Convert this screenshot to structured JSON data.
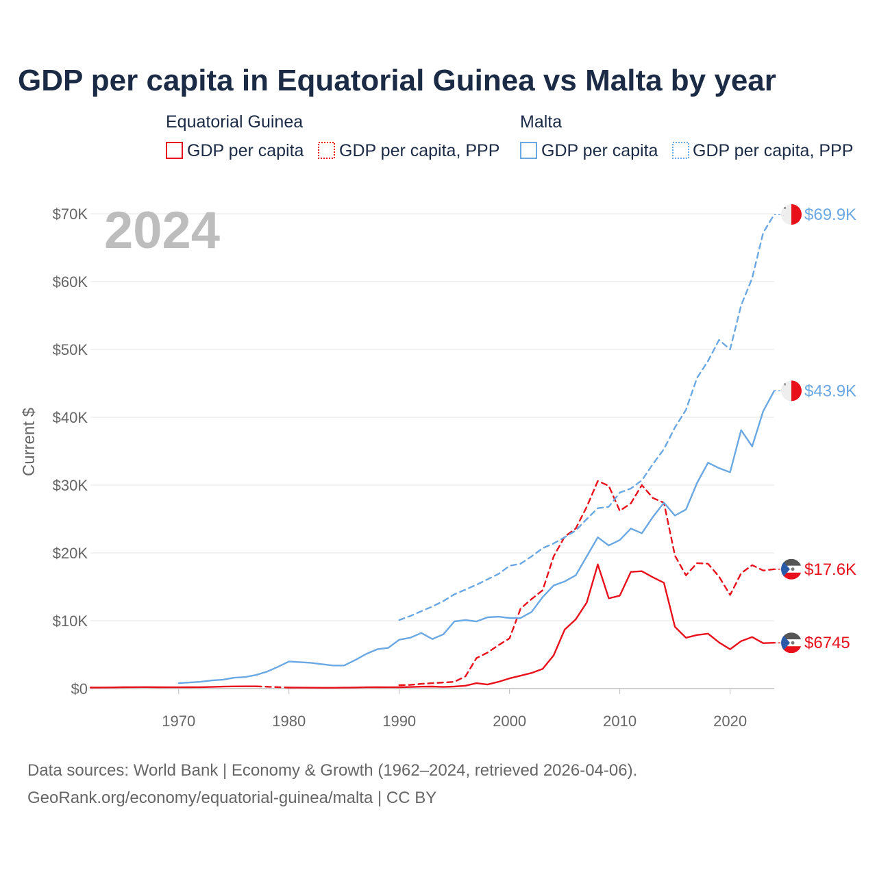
{
  "title": "GDP per capita in Equatorial Guinea vs Malta by year",
  "legend": {
    "groups": [
      {
        "name": "Equatorial Guinea",
        "color": "#e8101b",
        "items": [
          "GDP per capita",
          "GDP per capita, PPP"
        ]
      },
      {
        "name": "Malta",
        "color": "#6aa8e4",
        "items": [
          "GDP per capita",
          "GDP per capita, PPP"
        ]
      }
    ]
  },
  "year_label": "2024",
  "source_lines": [
    "Data sources: World Bank | Economy & Growth (1962–2024, retrieved 2026-04-06).",
    "GeoRank.org/economy/equatorial-guinea/malta | CC BY"
  ],
  "chart_data": {
    "type": "line",
    "title": "GDP per capita in Equatorial Guinea vs Malta by year",
    "xlabel": "",
    "ylabel": "Current $",
    "xlim": [
      1962,
      2024
    ],
    "ylim": [
      0,
      70000
    ],
    "x_ticks": [
      1970,
      1980,
      1990,
      2000,
      2010,
      2020
    ],
    "y_ticks": [
      0,
      10000,
      20000,
      30000,
      40000,
      50000,
      60000,
      70000
    ],
    "y_tick_labels": [
      "$0",
      "$10K",
      "$20K",
      "$30K",
      "$40K",
      "$50K",
      "$60K",
      "$70K"
    ],
    "grid": true,
    "series": [
      {
        "name": "Equatorial Guinea — GDP per capita",
        "country": "Equatorial Guinea",
        "color": "#e8101b",
        "style": "solid",
        "end_label": "$6745",
        "segments": [
          {
            "style": "solid",
            "points": [
              [
                1962,
                150
              ],
              [
                1963,
                160
              ],
              [
                1964,
                170
              ],
              [
                1965,
                200
              ],
              [
                1966,
                210
              ],
              [
                1967,
                220
              ],
              [
                1968,
                200
              ],
              [
                1969,
                190
              ],
              [
                1970,
                190
              ],
              [
                1971,
                200
              ],
              [
                1972,
                210
              ],
              [
                1973,
                240
              ],
              [
                1974,
                290
              ],
              [
                1975,
                320
              ],
              [
                1976,
                330
              ],
              [
                1977,
                330
              ]
            ]
          },
          {
            "style": "dashed",
            "points": [
              [
                1977,
                330
              ],
              [
                1980,
                150
              ]
            ]
          },
          {
            "style": "solid",
            "points": [
              [
                1980,
                150
              ],
              [
                1981,
                140
              ],
              [
                1982,
                130
              ],
              [
                1983,
                120
              ],
              [
                1984,
                120
              ],
              [
                1985,
                140
              ],
              [
                1986,
                160
              ],
              [
                1987,
                190
              ],
              [
                1988,
                210
              ],
              [
                1989,
                190
              ],
              [
                1990,
                200
              ],
              [
                1991,
                230
              ],
              [
                1992,
                280
              ],
              [
                1993,
                300
              ],
              [
                1994,
                240
              ],
              [
                1995,
                300
              ],
              [
                1996,
                420
              ],
              [
                1997,
                800
              ],
              [
                1998,
                600
              ],
              [
                1999,
                1000
              ],
              [
                2000,
                1500
              ],
              [
                2001,
                1900
              ],
              [
                2002,
                2300
              ],
              [
                2003,
                2900
              ],
              [
                2004,
                4900
              ],
              [
                2005,
                8700
              ],
              [
                2006,
                10200
              ],
              [
                2007,
                12700
              ],
              [
                2008,
                18300
              ],
              [
                2009,
                13300
              ],
              [
                2010,
                13700
              ],
              [
                2011,
                17200
              ],
              [
                2012,
                17300
              ],
              [
                2013,
                16400
              ],
              [
                2014,
                15600
              ],
              [
                2015,
                9100
              ],
              [
                2016,
                7500
              ],
              [
                2017,
                7900
              ],
              [
                2018,
                8100
              ],
              [
                2019,
                6800
              ],
              [
                2020,
                5800
              ],
              [
                2021,
                7000
              ],
              [
                2022,
                7600
              ],
              [
                2023,
                6700
              ],
              [
                2024,
                6745
              ]
            ]
          }
        ]
      },
      {
        "name": "Equatorial Guinea — GDP per capita, PPP",
        "country": "Equatorial Guinea",
        "color": "#e8101b",
        "style": "dashed",
        "end_label": "$17.6K",
        "segments": [
          {
            "style": "dashed",
            "points": [
              [
                1990,
                500
              ],
              [
                1991,
                550
              ],
              [
                1992,
                700
              ],
              [
                1993,
                800
              ],
              [
                1994,
                900
              ],
              [
                1995,
                1000
              ],
              [
                1996,
                1800
              ],
              [
                1997,
                4500
              ],
              [
                1998,
                5300
              ],
              [
                1999,
                6400
              ],
              [
                2000,
                7400
              ],
              [
                2001,
                11800
              ],
              [
                2002,
                13200
              ],
              [
                2003,
                14500
              ],
              [
                2004,
                19500
              ],
              [
                2005,
                22400
              ],
              [
                2006,
                23600
              ],
              [
                2007,
                26800
              ],
              [
                2008,
                30600
              ],
              [
                2009,
                29900
              ],
              [
                2010,
                26200
              ],
              [
                2011,
                27300
              ],
              [
                2012,
                30000
              ],
              [
                2013,
                28100
              ],
              [
                2014,
                27400
              ],
              [
                2015,
                19600
              ],
              [
                2016,
                16700
              ],
              [
                2017,
                18500
              ],
              [
                2018,
                18400
              ],
              [
                2019,
                16500
              ],
              [
                2020,
                13800
              ],
              [
                2021,
                17000
              ],
              [
                2022,
                18200
              ],
              [
                2023,
                17400
              ],
              [
                2024,
                17600
              ]
            ]
          }
        ]
      },
      {
        "name": "Malta — GDP per capita",
        "country": "Malta",
        "color": "#6aa8e4",
        "style": "solid",
        "end_label": "$43.9K",
        "segments": [
          {
            "style": "solid",
            "points": [
              [
                1970,
                800
              ],
              [
                1971,
                900
              ],
              [
                1972,
                1000
              ],
              [
                1973,
                1200
              ],
              [
                1974,
                1300
              ],
              [
                1975,
                1600
              ],
              [
                1976,
                1700
              ],
              [
                1977,
                2000
              ],
              [
                1978,
                2500
              ],
              [
                1979,
                3200
              ],
              [
                1980,
                4000
              ],
              [
                1981,
                3900
              ],
              [
                1982,
                3800
              ],
              [
                1983,
                3600
              ],
              [
                1984,
                3400
              ],
              [
                1985,
                3400
              ],
              [
                1986,
                4200
              ],
              [
                1987,
                5100
              ],
              [
                1988,
                5800
              ],
              [
                1989,
                6000
              ],
              [
                1990,
                7200
              ],
              [
                1991,
                7500
              ],
              [
                1992,
                8200
              ],
              [
                1993,
                7300
              ],
              [
                1994,
                8000
              ],
              [
                1995,
                9900
              ],
              [
                1996,
                10100
              ],
              [
                1997,
                9900
              ],
              [
                1998,
                10500
              ],
              [
                1999,
                10600
              ],
              [
                2000,
                10400
              ],
              [
                2001,
                10400
              ],
              [
                2002,
                11300
              ],
              [
                2003,
                13500
              ],
              [
                2004,
                15200
              ],
              [
                2005,
                15800
              ],
              [
                2006,
                16700
              ],
              [
                2007,
                19500
              ],
              [
                2008,
                22300
              ],
              [
                2009,
                21100
              ],
              [
                2010,
                21900
              ],
              [
                2011,
                23600
              ],
              [
                2012,
                22900
              ],
              [
                2013,
                25300
              ],
              [
                2014,
                27400
              ],
              [
                2015,
                25500
              ],
              [
                2016,
                26400
              ],
              [
                2017,
                30300
              ],
              [
                2018,
                33300
              ],
              [
                2019,
                32500
              ],
              [
                2020,
                31900
              ],
              [
                2021,
                38100
              ],
              [
                2022,
                35700
              ],
              [
                2023,
                40900
              ],
              [
                2024,
                43900
              ]
            ]
          }
        ]
      },
      {
        "name": "Malta — GDP per capita, PPP",
        "country": "Malta",
        "color": "#6aa8e4",
        "style": "dashed",
        "end_label": "$69.9K",
        "segments": [
          {
            "style": "dashed",
            "points": [
              [
                1990,
                10100
              ],
              [
                1991,
                10700
              ],
              [
                1992,
                11400
              ],
              [
                1993,
                12100
              ],
              [
                1994,
                12900
              ],
              [
                1995,
                13900
              ],
              [
                1996,
                14600
              ],
              [
                1997,
                15300
              ],
              [
                1998,
                16100
              ],
              [
                1999,
                16900
              ],
              [
                2000,
                18100
              ],
              [
                2001,
                18400
              ],
              [
                2002,
                19500
              ],
              [
                2003,
                20700
              ],
              [
                2004,
                21400
              ],
              [
                2005,
                22300
              ],
              [
                2006,
                23300
              ],
              [
                2007,
                25000
              ],
              [
                2008,
                26600
              ],
              [
                2009,
                26800
              ],
              [
                2010,
                28900
              ],
              [
                2011,
                29500
              ],
              [
                2012,
                30700
              ],
              [
                2013,
                33100
              ],
              [
                2014,
                35300
              ],
              [
                2015,
                38500
              ],
              [
                2016,
                41100
              ],
              [
                2017,
                45800
              ],
              [
                2018,
                48300
              ],
              [
                2019,
                51400
              ],
              [
                2020,
                50000
              ],
              [
                2021,
                56500
              ],
              [
                2022,
                60500
              ],
              [
                2023,
                67200
              ],
              [
                2024,
                69900
              ]
            ]
          }
        ]
      }
    ]
  }
}
